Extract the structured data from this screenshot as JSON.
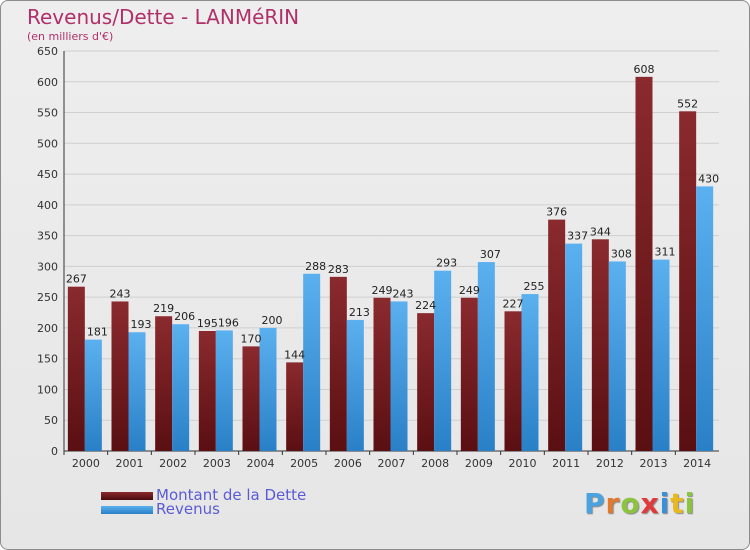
{
  "header": {
    "title": "Revenus/Dette - LANMéRIN",
    "subtitle": "(en milliers d'€)"
  },
  "legend": {
    "items": [
      {
        "label": "Montant de la Dette",
        "color": "#7b1e22"
      },
      {
        "label": "Revenus",
        "color": "#3d96dd"
      }
    ]
  },
  "logo": {
    "text": "Proxiti",
    "letter_colors": [
      "#4aa3df",
      "#e07a2e",
      "#8cc43f",
      "#e03a3a",
      "#3a8fd9",
      "#e8b820",
      "#8cc43f"
    ]
  },
  "chart_data": {
    "type": "bar",
    "title": "Revenus/Dette - LANMéRIN",
    "subtitle": "(en milliers d'€)",
    "categories": [
      "2000",
      "2001",
      "2002",
      "2003",
      "2004",
      "2005",
      "2006",
      "2007",
      "2008",
      "2009",
      "2010",
      "2011",
      "2012",
      "2013",
      "2014"
    ],
    "series": [
      {
        "name": "Montant de la Dette",
        "color": "#7b1e22",
        "values": [
          267,
          243,
          219,
          195,
          170,
          144,
          283,
          249,
          224,
          249,
          227,
          376,
          344,
          608,
          552
        ]
      },
      {
        "name": "Revenus",
        "color": "#3d96dd",
        "values": [
          181,
          193,
          206,
          196,
          200,
          288,
          213,
          243,
          293,
          307,
          255,
          337,
          308,
          311,
          430
        ]
      }
    ],
    "ylim": [
      0,
      650
    ],
    "yticks": [
      0,
      50,
      100,
      150,
      200,
      250,
      300,
      350,
      400,
      450,
      500,
      550,
      600,
      650
    ],
    "grid": true,
    "legend_position": "bottom-left"
  }
}
